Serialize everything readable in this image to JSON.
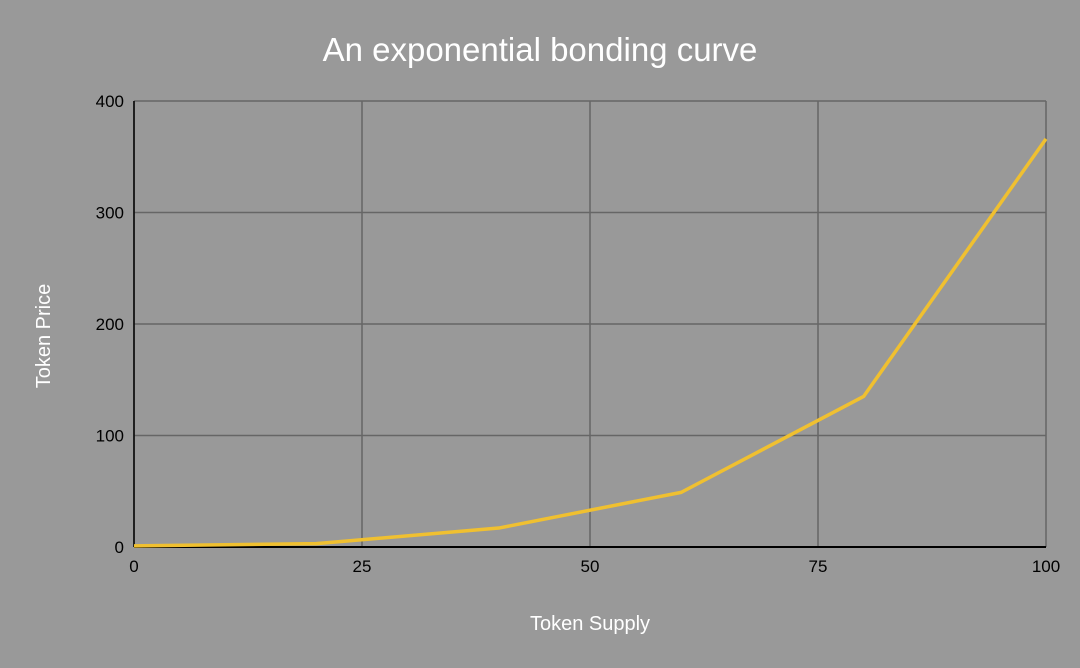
{
  "chart_data": {
    "type": "line",
    "title": "An exponential bonding curve",
    "xlabel": "Token Supply",
    "ylabel": "Token Price",
    "xlim": [
      0,
      100
    ],
    "ylim": [
      0,
      400
    ],
    "xticks": [
      "0",
      "25",
      "50",
      "75",
      "100"
    ],
    "yticks": [
      "0",
      "100",
      "200",
      "300",
      "400"
    ],
    "grid": true,
    "series": [
      {
        "x": [
          0,
          20,
          40,
          60,
          80,
          100
        ],
        "values": [
          1,
          3,
          17,
          49,
          135,
          366
        ],
        "color": "#f0c030"
      }
    ]
  },
  "colors": {
    "background": "#999999",
    "grid": "#666666",
    "line": "#f0c030"
  }
}
